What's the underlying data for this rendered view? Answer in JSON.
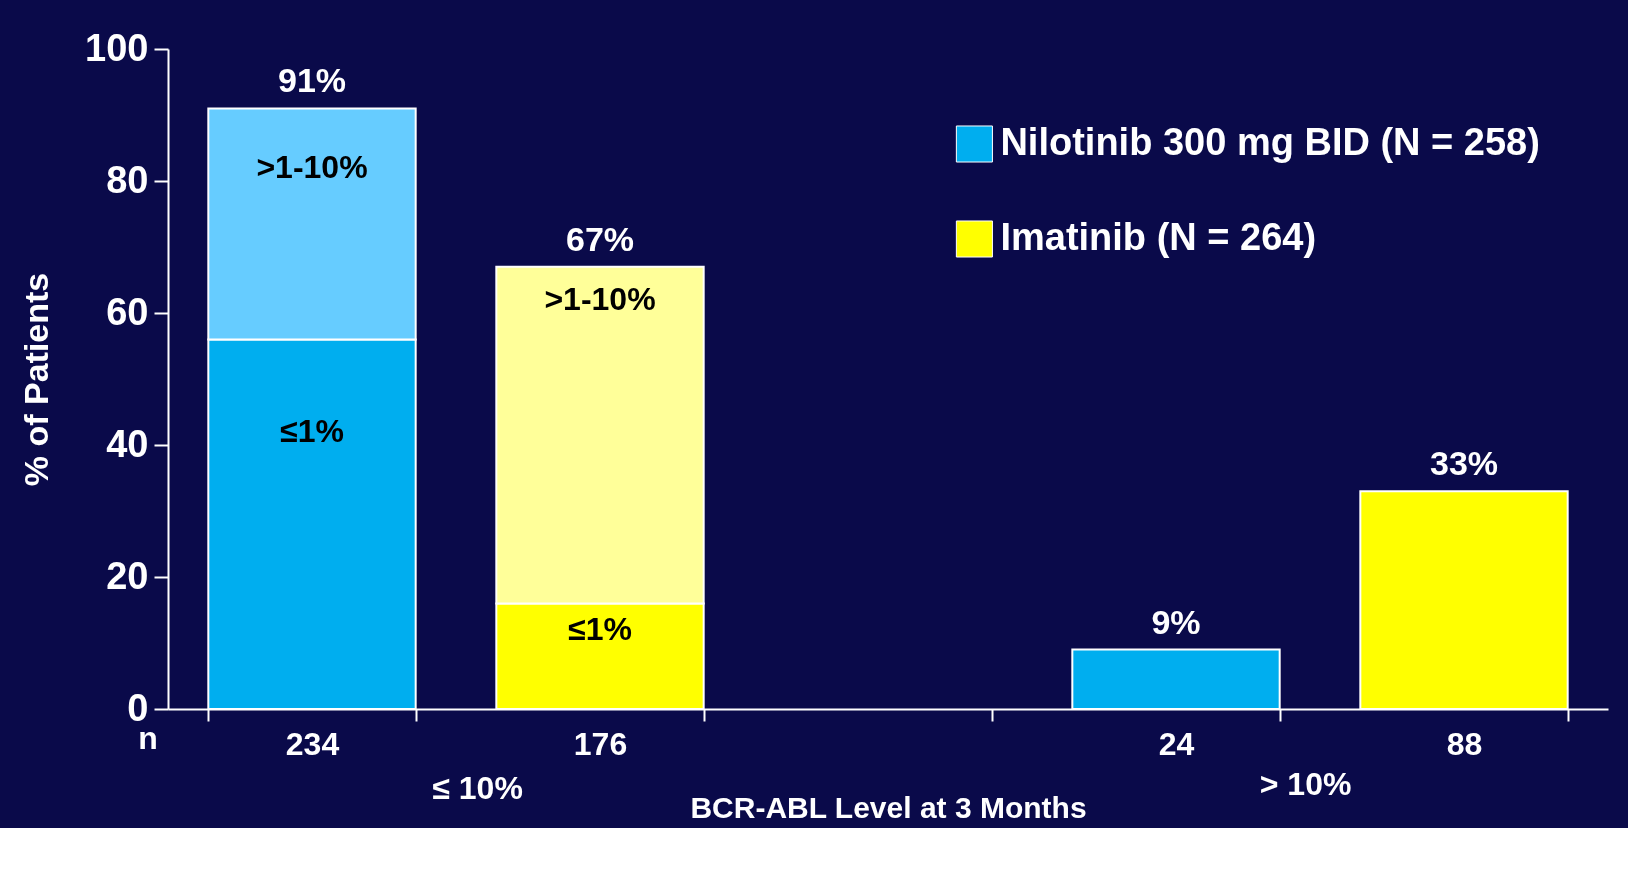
{
  "chart_data": {
    "type": "bar",
    "stacked": true,
    "ylabel": "% of Patients",
    "xlabel": "BCR-ABL Level at 3 Months",
    "categories": [
      "234",
      "176",
      null,
      "24",
      "88"
    ],
    "series": [
      {
        "name": "Nilotinib 300 mg BID (N = 258)",
        "color": "#00aeef",
        "values": [
          56,
          null,
          null,
          9,
          null
        ]
      },
      {
        "name": "Imatinib (N = 264)",
        "color": "#ffff00",
        "values": [
          null,
          16,
          null,
          null,
          33
        ]
      },
      {
        "color": "#66ccff",
        "values": [
          35,
          null,
          null,
          null,
          null
        ]
      },
      {
        "color": "#ffff99",
        "values": [
          null,
          51,
          null,
          null,
          null
        ]
      }
    ],
    "totals": [
      "91%",
      "67%",
      null,
      "9%",
      "33%"
    ],
    "ylim": [
      0,
      100
    ],
    "yticks": [
      0,
      20,
      40,
      60,
      80,
      100
    ],
    "grid": false,
    "legend": "top right",
    "annotations": [
      "≤1%",
      ">1-10%",
      "≤1%",
      ">1-10%",
      "n",
      "≤ 10%",
      "> 10%"
    ]
  }
}
